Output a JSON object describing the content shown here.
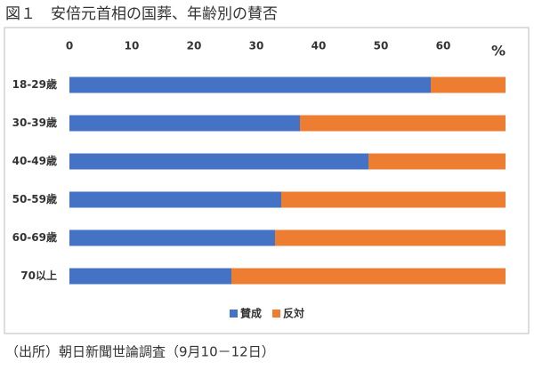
{
  "chart_data": {
    "type": "bar",
    "orientation": "horizontal",
    "stacked": true,
    "title": "図１　安倍元首相の国葬、年齢別の賛否",
    "source": "（出所）朝日新聞世論調査（9月10－12日）",
    "unit": "%",
    "categories": [
      "18-29歳",
      "30-39歳",
      "40-49歳",
      "50-59歳",
      "60-69歳",
      "70以上"
    ],
    "series": [
      {
        "name": "賛成",
        "color": "#4472c4",
        "values": [
          58,
          37,
          48,
          34,
          33,
          26
        ]
      },
      {
        "name": "反対",
        "color": "#ed7d31",
        "values": [
          12,
          33,
          22,
          36,
          37,
          44
        ]
      }
    ],
    "xlim": [
      0,
      70
    ],
    "xticks": [
      0,
      10,
      20,
      30,
      40,
      50,
      60
    ],
    "grid": false,
    "legend": "bottom"
  }
}
